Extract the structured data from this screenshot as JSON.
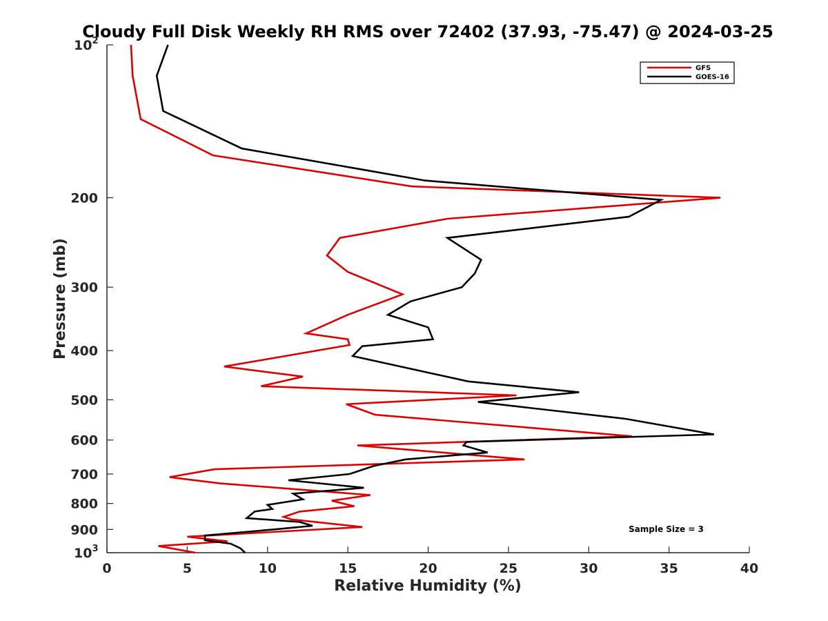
{
  "chart_data": {
    "type": "line",
    "title": "Cloudy Full Disk Weekly RH RMS over 72402 (37.93, -75.47) @ 2024-03-25",
    "xlabel": "Relative Humidity (%)",
    "ylabel": "Pressure (mb)",
    "xlim": [
      0,
      40
    ],
    "ylim": [
      100,
      1000
    ],
    "yscale": "log",
    "y_reversed": true,
    "grid": false,
    "legend_position": "top-right",
    "x_ticks": [
      "0",
      "5",
      "10",
      "15",
      "20",
      "25",
      "30",
      "35",
      "40"
    ],
    "x_tick_values": [
      0,
      5,
      10,
      15,
      20,
      25,
      30,
      35,
      40
    ],
    "y_ticks": [
      {
        "value": 100,
        "base": "10",
        "exp": "2"
      },
      {
        "value": 200,
        "label": "200"
      },
      {
        "value": 300,
        "label": "300"
      },
      {
        "value": 400,
        "label": "400"
      },
      {
        "value": 500,
        "label": "500"
      },
      {
        "value": 600,
        "label": "600"
      },
      {
        "value": 700,
        "label": "700"
      },
      {
        "value": 800,
        "label": "800"
      },
      {
        "value": 900,
        "label": "900"
      },
      {
        "value": 1000,
        "base": "10",
        "exp": "3"
      }
    ],
    "annotation": "Sample Size = 3",
    "series": [
      {
        "name": "GFS",
        "color": "#e00000",
        "x": [
          1.5,
          1.6,
          2.1,
          6.6,
          19.0,
          38.2,
          21.2,
          14.5,
          13.7,
          15.0,
          18.4,
          15.0,
          12.4,
          15.0,
          15.1,
          7.3,
          12.2,
          9.6,
          25.5,
          14.9,
          16.7,
          32.7,
          15.6,
          26.0,
          6.7,
          3.9,
          7.0,
          16.4,
          14.0,
          15.4,
          12.0,
          11.0,
          11.5,
          15.9,
          5.0,
          7.5,
          3.2,
          5.5
        ],
        "y": [
          100,
          115,
          140,
          165,
          190,
          200,
          220,
          240,
          260,
          280,
          310,
          340,
          370,
          380,
          390,
          430,
          450,
          470,
          490,
          510,
          535,
          590,
          615,
          655,
          685,
          710,
          730,
          770,
          790,
          810,
          830,
          850,
          860,
          890,
          930,
          950,
          970,
          1000
        ]
      },
      {
        "name": "GOES-16",
        "color": "#000000",
        "x": [
          3.8,
          3.1,
          3.5,
          8.4,
          19.8,
          34.5,
          32.5,
          21.2,
          23.3,
          22.9,
          22.1,
          18.9,
          17.5,
          20.0,
          20.3,
          15.9,
          15.3,
          22.5,
          29.4,
          23.1,
          32.3,
          37.8,
          22.4,
          22.2,
          23.7,
          18.6,
          16.6,
          15.1,
          11.3,
          16.0,
          11.6,
          12.2,
          10.0,
          10.3,
          9.2,
          8.7,
          12.0,
          12.8,
          10.4,
          6.1,
          6.1,
          7.7,
          8.3,
          8.6
        ],
        "y": [
          100,
          115,
          135,
          160,
          185,
          202,
          218,
          240,
          265,
          282,
          300,
          320,
          340,
          360,
          380,
          392,
          410,
          460,
          483,
          505,
          545,
          585,
          605,
          615,
          635,
          655,
          675,
          700,
          720,
          745,
          765,
          785,
          805,
          820,
          830,
          855,
          870,
          885,
          900,
          925,
          945,
          960,
          980,
          1000
        ]
      }
    ]
  }
}
